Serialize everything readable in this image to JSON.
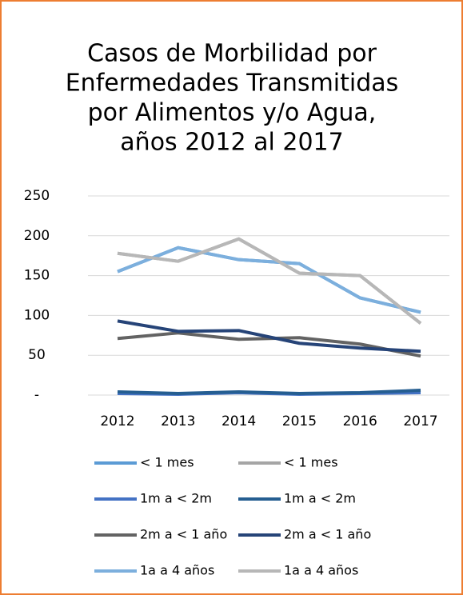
{
  "chart_data": {
    "type": "line",
    "title": [
      "Casos de Morbilidad por",
      "Enfermedades Transmitidas",
      "por Alimentos y/o Agua,",
      "años 2012 al 2017"
    ],
    "categories": [
      "2012",
      "2013",
      "2014",
      "2015",
      "2016",
      "2017"
    ],
    "series": [
      {
        "name": "< 1 mes",
        "color": "#5b9bd5",
        "values": [
          155,
          185,
          170,
          165,
          122,
          104
        ]
      },
      {
        "name": "< 1 mes",
        "color": "#a5a5a5",
        "values": [
          178,
          168,
          196,
          153,
          150,
          90
        ]
      },
      {
        "name": "1m a < 2m",
        "color": "#4472c4",
        "values": [
          2,
          1,
          3,
          1,
          2,
          3
        ]
      },
      {
        "name": "1m a < 2m",
        "color": "#255e91",
        "values": [
          4,
          2,
          4,
          2,
          3,
          6
        ]
      },
      {
        "name": "2m a < 1 año",
        "color": "#636363",
        "values": [
          71,
          78,
          70,
          72,
          64,
          49
        ]
      },
      {
        "name": "2m a < 1 año",
        "color": "#264478",
        "values": [
          93,
          80,
          81,
          65,
          59,
          55
        ]
      },
      {
        "name": "1a a 4 años",
        "color": "#7cafdd",
        "values": [
          155,
          185,
          170,
          165,
          122,
          104
        ]
      },
      {
        "name": "1a a 4 años",
        "color": "#b7b7b7",
        "values": [
          178,
          168,
          196,
          153,
          150,
          90
        ]
      }
    ],
    "ylim": [
      0,
      250
    ],
    "yticks": [
      {
        "value": 0,
        "label": "-"
      },
      50,
      100,
      150,
      200,
      250
    ],
    "grid": true,
    "legend": "bottom"
  }
}
